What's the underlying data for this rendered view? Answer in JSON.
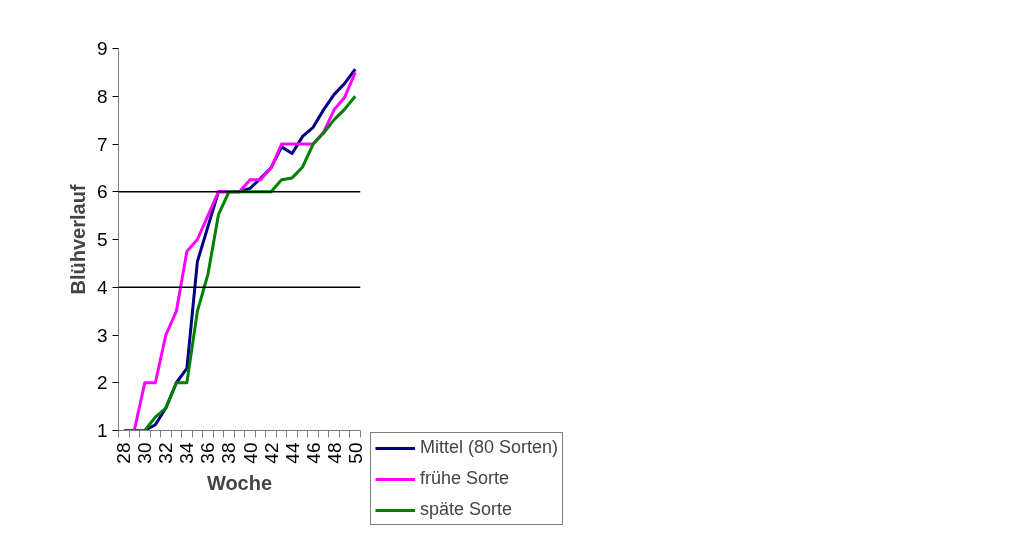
{
  "chart_data": {
    "type": "line",
    "xlabel": "Woche",
    "ylabel": "Blühverlauf",
    "categories": [
      "28",
      null,
      "30",
      null,
      "32",
      null,
      "34",
      null,
      "36",
      null,
      "38",
      null,
      "40",
      null,
      "42",
      null,
      "44",
      null,
      "46",
      null,
      "48",
      null,
      "50"
    ],
    "series": [
      {
        "name": "Mittel (80 Sorten)",
        "color": "#000080",
        "values": [
          null,
          null,
          1,
          1.12,
          1.47,
          2,
          2.3,
          4.54,
          5.27,
          6,
          6,
          6,
          6.07,
          6.28,
          6.5,
          6.94,
          6.8,
          7.16,
          7.35,
          7.72,
          8.04,
          8.27,
          8.57
        ]
      },
      {
        "name": "frühe Sorte",
        "color": "#ff00ff",
        "values": [
          null,
          1,
          2,
          2,
          3,
          3.5,
          4.75,
          5,
          5.5,
          6,
          6,
          6,
          6.25,
          6.25,
          6.5,
          7,
          7,
          7,
          7,
          7.25,
          7.72,
          7.98,
          8.5
        ]
      },
      {
        "name": "späte Sorte",
        "color": "#008000",
        "values": [
          1,
          1,
          1,
          1.28,
          1.47,
          2,
          2,
          3.5,
          4.27,
          5.52,
          6,
          6,
          6,
          6,
          6,
          6.25,
          6.29,
          6.52,
          7,
          7.23,
          7.51,
          7.73,
          8
        ]
      }
    ],
    "ylim": [
      1,
      9
    ],
    "yticks": [
      1,
      2,
      3,
      4,
      5,
      6,
      7,
      8,
      9
    ],
    "ref_lines": [
      {
        "axis": "y",
        "value": 4,
        "color": "#000000"
      },
      {
        "axis": "y",
        "value": 6,
        "color": "#000000"
      }
    ],
    "grid": false,
    "legend": "right",
    "marker": "none",
    "line_style": "solid"
  }
}
